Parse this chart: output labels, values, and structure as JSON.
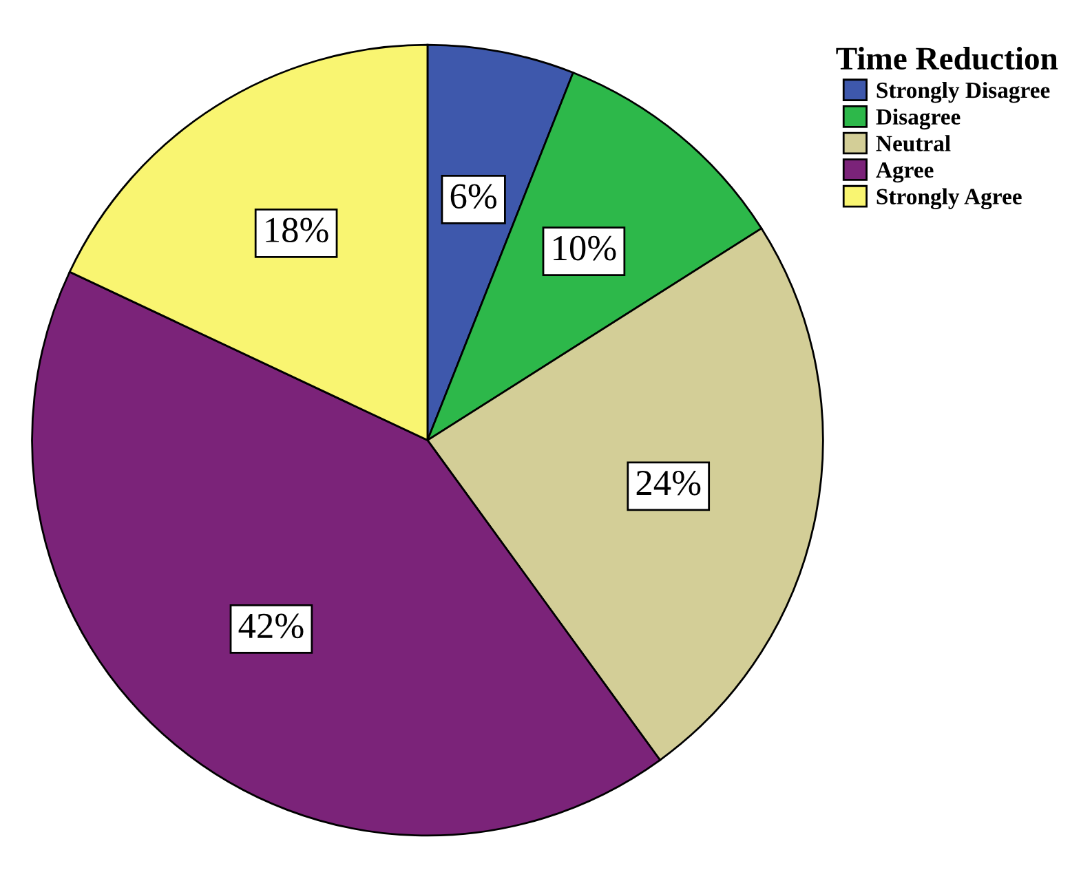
{
  "chart_data": {
    "type": "pie",
    "legend_title": "Time Reduction",
    "categories": [
      "Strongly Disagree",
      "Disagree",
      "Neutral",
      "Agree",
      "Strongly Agree"
    ],
    "values": [
      6,
      10,
      24,
      42,
      18
    ],
    "value_labels": [
      "6%",
      "10%",
      "24%",
      "42%",
      "18%"
    ],
    "colors": [
      "#3e58ac",
      "#2db84a",
      "#d3ce97",
      "#7b2379",
      "#f9f571"
    ],
    "legend": "top right"
  }
}
